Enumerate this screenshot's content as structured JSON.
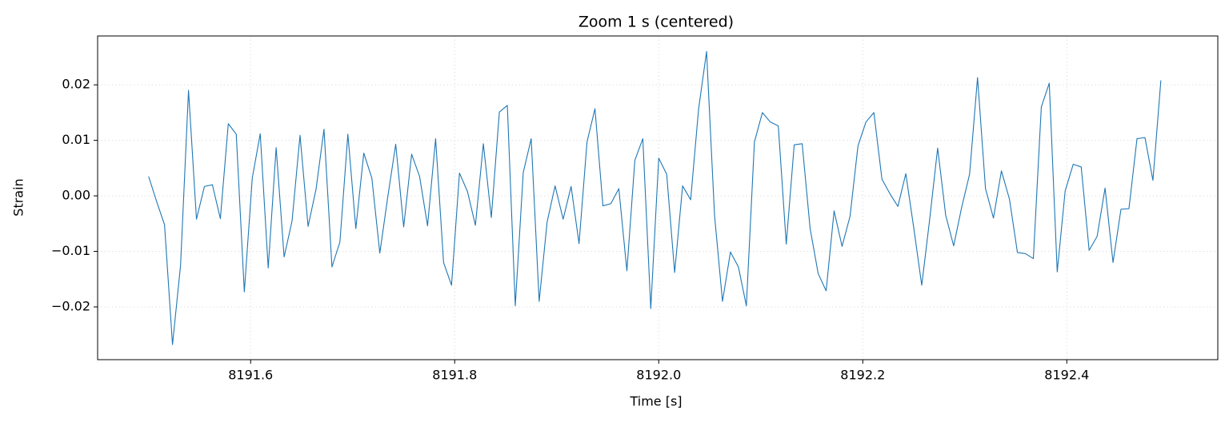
{
  "chart_data": {
    "type": "line",
    "title": "Zoom 1 s (centered)",
    "xlabel": "Time [s]",
    "ylabel": "Strain",
    "color": "#1f77b4",
    "grid": true,
    "xlim": [
      8191.45,
      8192.548
    ],
    "ylim": [
      -0.0295,
      0.0288
    ],
    "xticks": [
      8191.6,
      8191.8,
      {
        "value": 8192,
        "label": "8192.0"
      },
      8192.2,
      8192.4
    ],
    "yticks": [
      {
        "value": -0.02,
        "label": "−0.02"
      },
      {
        "value": -0.01,
        "label": "−0.01"
      },
      {
        "value": 0,
        "label": "0.00"
      },
      {
        "value": 0.01,
        "label": "0.01"
      },
      {
        "value": 0.02,
        "label": "0.02"
      }
    ],
    "x": [
      8191.5,
      8191.5078,
      8191.5156,
      8191.5234,
      8191.5313,
      8191.5391,
      8191.5469,
      8191.5547,
      8191.5625,
      8191.5703,
      8191.5781,
      8191.5859,
      8191.5938,
      8191.6016,
      8191.6094,
      8191.6172,
      8191.625,
      8191.6328,
      8191.6406,
      8191.6484,
      8191.6563,
      8191.6641,
      8191.6719,
      8191.6797,
      8191.6875,
      8191.6953,
      8191.7031,
      8191.7109,
      8191.7188,
      8191.7266,
      8191.7344,
      8191.7422,
      8191.75,
      8191.7578,
      8191.7656,
      8191.7734,
      8191.7813,
      8191.7891,
      8191.7969,
      8191.8047,
      8191.8125,
      8191.8203,
      8191.8281,
      8191.8359,
      8191.8438,
      8191.8516,
      8191.8594,
      8191.8672,
      8191.875,
      8191.8828,
      8191.8906,
      8191.8984,
      8191.9063,
      8191.9141,
      8191.9219,
      8191.9297,
      8191.9375,
      8191.9453,
      8191.9531,
      8191.9609,
      8191.9688,
      8191.9766,
      8191.9844,
      8191.9922,
      8192.0,
      8192.0078,
      8192.0156,
      8192.0234,
      8192.0313,
      8192.0391,
      8192.0469,
      8192.0547,
      8192.0625,
      8192.0703,
      8192.0781,
      8192.0859,
      8192.0938,
      8192.1016,
      8192.1094,
      8192.1172,
      8192.125,
      8192.1328,
      8192.1406,
      8192.1484,
      8192.1563,
      8192.1641,
      8192.1719,
      8192.1797,
      8192.1875,
      8192.1953,
      8192.2031,
      8192.2109,
      8192.2188,
      8192.2266,
      8192.2344,
      8192.2422,
      8192.25,
      8192.2578,
      8192.2656,
      8192.2734,
      8192.2813,
      8192.2891,
      8192.2969,
      8192.3047,
      8192.3125,
      8192.3203,
      8192.3281,
      8192.3359,
      8192.3438,
      8192.3516,
      8192.3594,
      8192.3672,
      8192.375,
      8192.3828,
      8192.3906,
      8192.3984,
      8192.4063,
      8192.4141,
      8192.4219,
      8192.4297,
      8192.4375,
      8192.4453,
      8192.4531,
      8192.4609,
      8192.4688,
      8192.4766,
      8192.4844,
      8192.4922
    ],
    "values": [
      0.0035,
      -0.001,
      -0.0052,
      -0.0268,
      -0.0125,
      0.019,
      -0.0042,
      0.0017,
      0.002,
      -0.0041,
      0.013,
      0.0111,
      -0.0173,
      0.0032,
      0.0112,
      -0.013,
      0.0087,
      -0.011,
      -0.0045,
      0.0109,
      -0.0055,
      0.0012,
      0.012,
      -0.0128,
      -0.0083,
      0.0111,
      -0.0059,
      0.0077,
      0.0032,
      -0.0103,
      -0.0002,
      0.0093,
      -0.0056,
      0.0075,
      0.0035,
      -0.0054,
      0.0103,
      -0.012,
      -0.0161,
      0.0041,
      0.0008,
      -0.0053,
      0.0094,
      -0.0039,
      0.0151,
      0.0163,
      -0.0198,
      0.0042,
      0.0103,
      -0.019,
      -0.0047,
      0.0018,
      -0.0042,
      0.0017,
      -0.0086,
      0.0097,
      0.0157,
      -0.0018,
      -0.0014,
      0.0013,
      -0.0135,
      0.0064,
      0.0103,
      -0.0203,
      0.0068,
      0.0039,
      -0.0138,
      0.0018,
      -0.0007,
      0.0157,
      0.026,
      -0.0035,
      -0.019,
      -0.0101,
      -0.0128,
      -0.0198,
      0.0097,
      0.015,
      0.0133,
      0.0126,
      -0.0087,
      0.0092,
      0.0094,
      -0.0059,
      -0.014,
      -0.0171,
      -0.0027,
      -0.0091,
      -0.0037,
      0.009,
      0.0133,
      0.015,
      0.003,
      0.0004,
      -0.0019,
      0.004,
      -0.0058,
      -0.0161,
      -0.0042,
      0.0086,
      -0.0035,
      -0.009,
      -0.0021,
      0.0039,
      0.0213,
      0.0013,
      -0.004,
      0.0045,
      -0.0006,
      -0.0102,
      -0.0104,
      -0.0113,
      0.016,
      0.0203,
      -0.0137,
      0.0009,
      0.0057,
      0.0052,
      -0.0098,
      -0.0073,
      0.0014,
      -0.012,
      -0.0024,
      -0.0023,
      0.0103,
      0.0105,
      0.0028,
      0.0208
    ]
  }
}
